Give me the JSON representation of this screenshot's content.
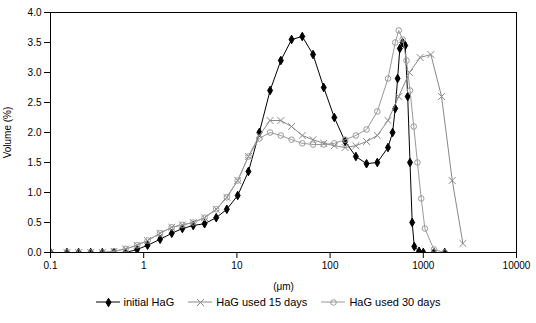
{
  "chart_data": {
    "type": "line",
    "xlabel": "(μm)",
    "ylabel": "Volume (%)",
    "log": "x",
    "grid": false,
    "legend": "bottom",
    "xlim": [
      0.1,
      10000
    ],
    "xticks": [
      0.1,
      1,
      10,
      100,
      1000,
      10000
    ],
    "ylim": [
      0,
      4
    ],
    "yticks": [
      {
        "value": 0,
        "label": "0.0"
      },
      {
        "value": 0.5,
        "label": "0.5"
      },
      {
        "value": 1.0,
        "label": "1.0"
      },
      {
        "value": 1.5,
        "label": "1.5"
      },
      {
        "value": 2.0,
        "label": "2.0"
      },
      {
        "value": 2.5,
        "label": "2.5"
      },
      {
        "value": 3.0,
        "label": "3.0"
      },
      {
        "value": 3.5,
        "label": "3.5"
      },
      {
        "value": 4.0,
        "label": "4.0"
      }
    ],
    "series": [
      {
        "name": "initial HaG",
        "color": "#000000",
        "marker": "diamond",
        "x": [
          0.1,
          0.15,
          0.2,
          0.27,
          0.36,
          0.48,
          0.64,
          0.85,
          1.1,
          1.5,
          2.0,
          2.6,
          3.4,
          4.5,
          6.0,
          7.8,
          10.2,
          13.3,
          17.4,
          22.7,
          29.6,
          38.6,
          50.3,
          65.6,
          85.5,
          111,
          145,
          189,
          246,
          321,
          418,
          468,
          500,
          530,
          560,
          600,
          640,
          680,
          720,
          760,
          800,
          900,
          1000,
          1300,
          1700
        ],
        "values": [
          0,
          0,
          0,
          0,
          0,
          0,
          0,
          0.05,
          0.12,
          0.22,
          0.32,
          0.4,
          0.45,
          0.48,
          0.58,
          0.72,
          0.95,
          1.35,
          2.0,
          2.7,
          3.2,
          3.55,
          3.6,
          3.3,
          2.75,
          2.25,
          1.85,
          1.6,
          1.48,
          1.5,
          1.75,
          2.0,
          2.4,
          2.9,
          3.4,
          3.5,
          3.45,
          2.6,
          1.5,
          0.5,
          0.1,
          0.02,
          0.0,
          0.0,
          0.0
        ]
      },
      {
        "name": "HaG used 15 days",
        "color": "#888888",
        "marker": "x",
        "x": [
          0.1,
          0.15,
          0.2,
          0.27,
          0.36,
          0.48,
          0.64,
          0.85,
          1.1,
          1.5,
          2.0,
          2.6,
          3.4,
          4.5,
          6.0,
          7.8,
          10.2,
          13.3,
          17.4,
          22.7,
          29.6,
          38.6,
          50.3,
          65.6,
          85.5,
          111,
          145,
          189,
          246,
          321,
          418,
          545,
          710,
          925,
          1205,
          1570,
          2044,
          2661
        ],
        "values": [
          0,
          0,
          0,
          0,
          0,
          0.02,
          0.06,
          0.12,
          0.2,
          0.32,
          0.42,
          0.46,
          0.5,
          0.58,
          0.72,
          0.92,
          1.2,
          1.6,
          1.95,
          2.2,
          2.2,
          2.1,
          1.95,
          1.88,
          1.82,
          1.78,
          1.75,
          1.78,
          1.85,
          1.95,
          2.2,
          2.6,
          3.0,
          3.25,
          3.3,
          2.6,
          1.2,
          0.15
        ]
      },
      {
        "name": "HaG used 30 days",
        "color": "#999999",
        "marker": "open-circle",
        "x": [
          0.1,
          0.15,
          0.2,
          0.27,
          0.36,
          0.48,
          0.64,
          0.85,
          1.1,
          1.5,
          2.0,
          2.6,
          3.4,
          4.5,
          6.0,
          7.8,
          10.2,
          13.3,
          17.4,
          22.7,
          29.6,
          38.6,
          50.3,
          65.6,
          85.5,
          111,
          145,
          189,
          246,
          321,
          418,
          500,
          545,
          600,
          660,
          720,
          790,
          865,
          950,
          1040,
          1300,
          1700
        ],
        "values": [
          0,
          0,
          0,
          0,
          0,
          0.02,
          0.06,
          0.12,
          0.2,
          0.32,
          0.42,
          0.46,
          0.5,
          0.58,
          0.72,
          0.92,
          1.2,
          1.6,
          1.9,
          2.0,
          1.95,
          1.88,
          1.82,
          1.8,
          1.8,
          1.82,
          1.88,
          1.95,
          2.05,
          2.35,
          2.9,
          3.5,
          3.7,
          3.55,
          3.2,
          2.7,
          2.1,
          1.5,
          0.9,
          0.4,
          0.05,
          0.0
        ]
      }
    ]
  }
}
